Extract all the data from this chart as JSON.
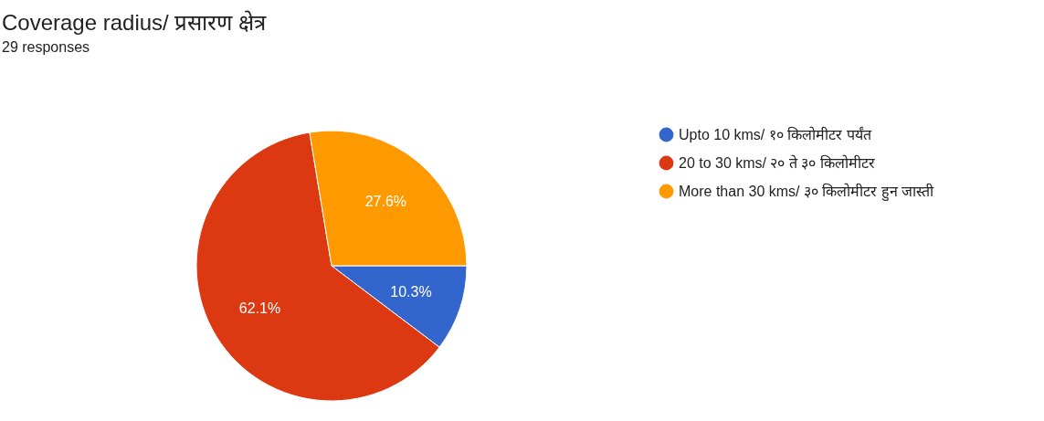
{
  "chart_data": {
    "type": "pie",
    "title": "Coverage radius/ प्रसारण क्षेत्र",
    "subtitle": "29 responses",
    "categories": [
      "Upto 10 kms/ १० किलोमीटर पर्यंत",
      "20 to 30 kms/ २० ते ३० किलोमीटर",
      "More than 30 kms/ ३० किलोमीटर हुन जास्ती"
    ],
    "values": [
      10.3,
      62.1,
      27.6
    ],
    "colors": [
      "#3366cc",
      "#dc3912",
      "#ff9900"
    ],
    "value_labels": [
      "10.3%",
      "62.1%",
      "27.6%"
    ],
    "legend": "right"
  }
}
